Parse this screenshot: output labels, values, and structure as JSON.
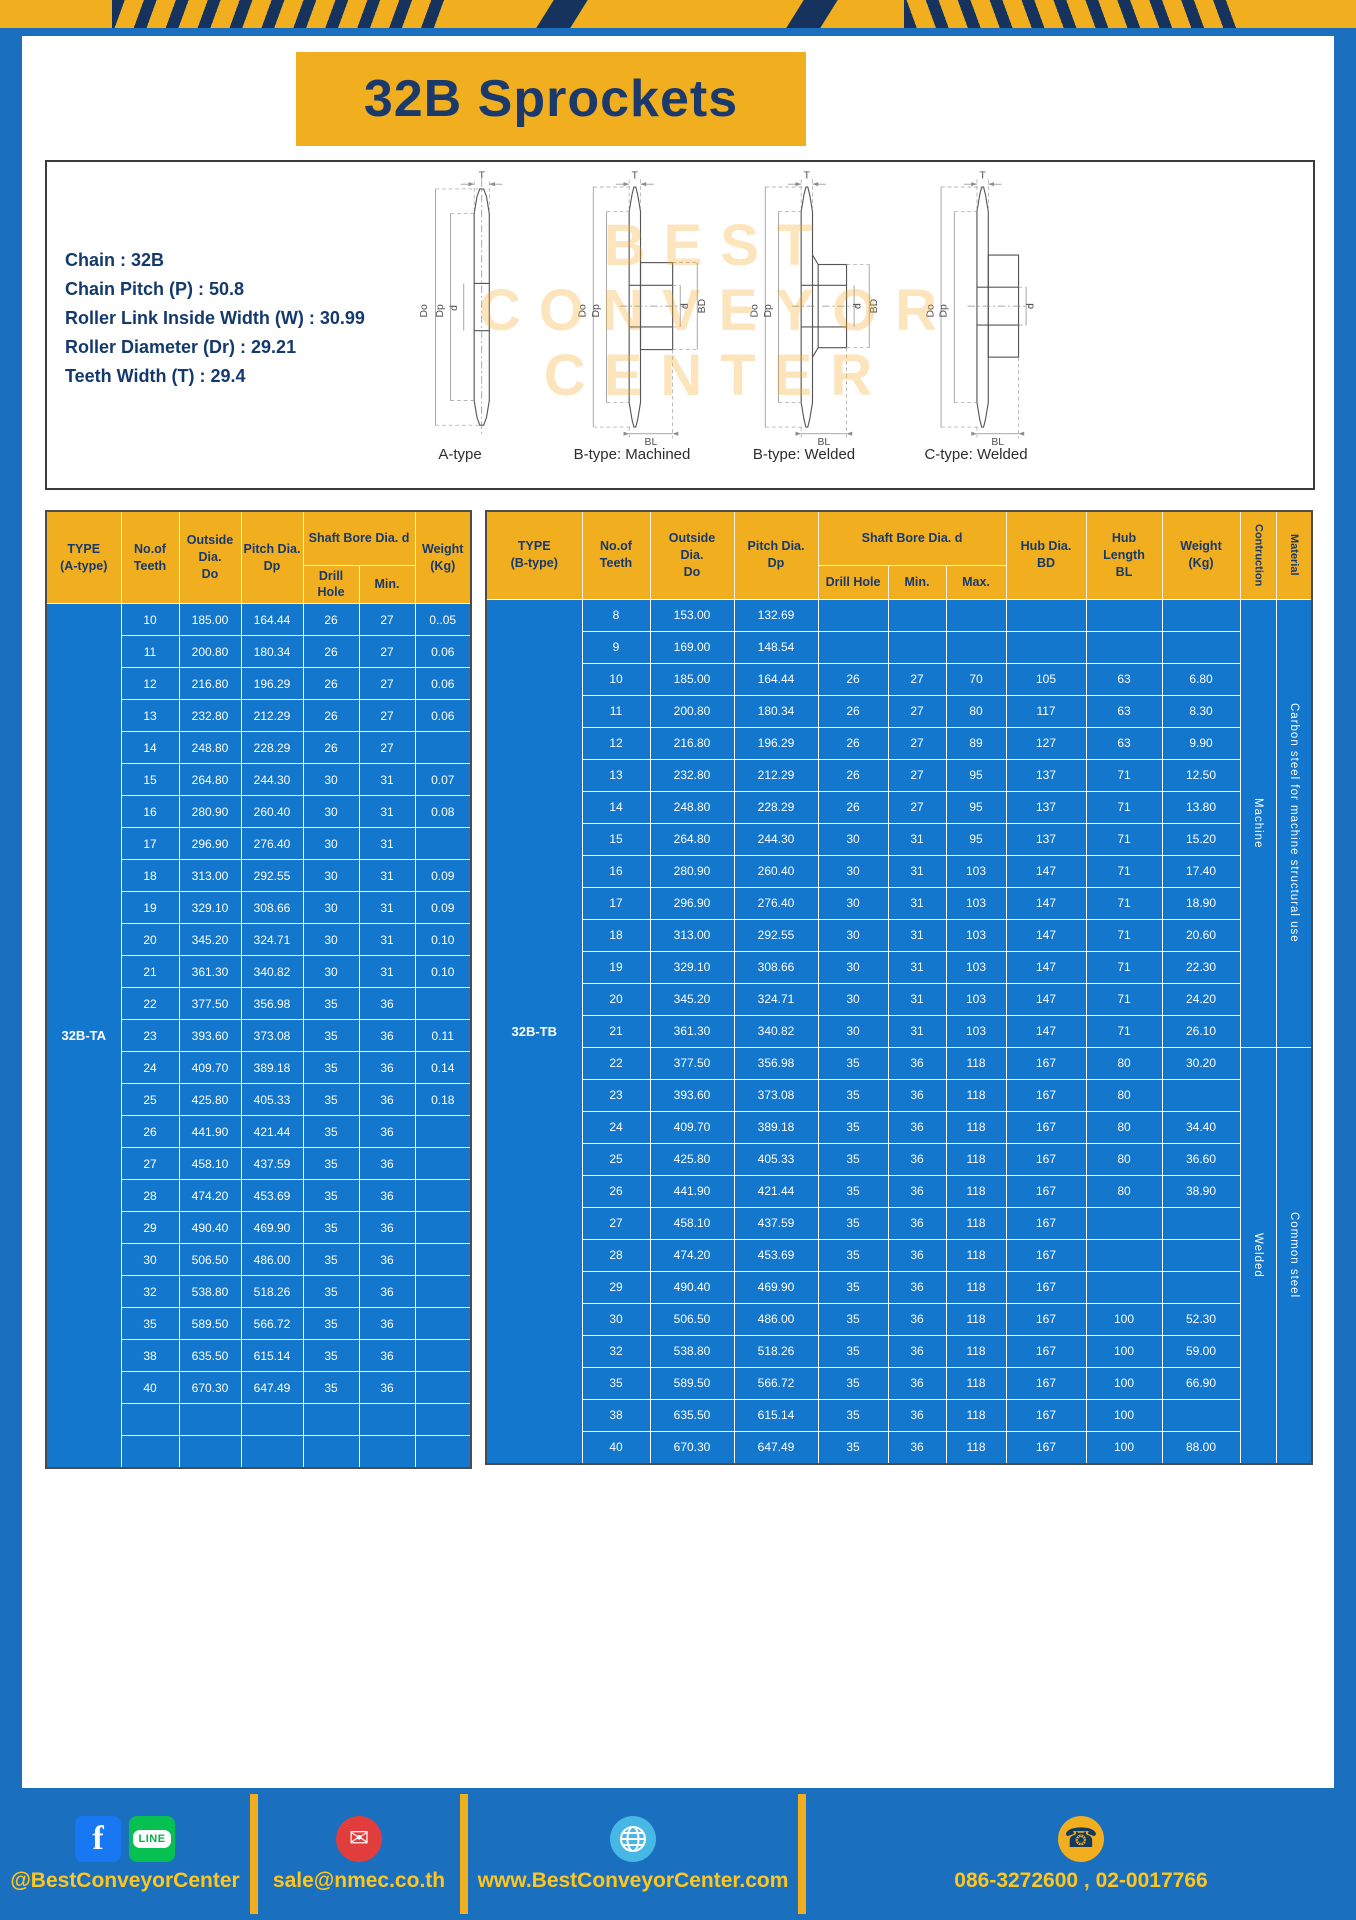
{
  "title": "32B Sprockets",
  "specs": {
    "lines": [
      "Chain : 32B",
      "Chain Pitch (P) : 50.8",
      "Roller Link Inside Width (W) : 30.99",
      "Roller Diameter (Dr) : 29.21",
      "Teeth Width (T) : 29.4"
    ],
    "watermark": [
      "BEST",
      "CONVEYOR",
      "CENTER"
    ],
    "diagram_labels": [
      "A-type",
      "B-type: Machined",
      "B-type: Welded",
      "C-type: Welded"
    ],
    "dims": {
      "T": "T",
      "Do": "Do",
      "Dp": "Dp",
      "d": "d",
      "BD": "BD",
      "BL": "BL"
    }
  },
  "table_a": {
    "headers": {
      "type": "TYPE\n(A-type)",
      "teeth": "No.of\nTeeth",
      "outside": "Outside\nDia.\nDo",
      "pitch": "Pitch Dia.\nDp",
      "shaft_group": "Shaft Bore Dia. d",
      "drill": "Drill Hole",
      "min": "Min.",
      "weight": "Weight\n(Kg)"
    },
    "type_label": "32B-TA",
    "rows": [
      [
        "10",
        "185.00",
        "164.44",
        "26",
        "27",
        "0..05"
      ],
      [
        "11",
        "200.80",
        "180.34",
        "26",
        "27",
        "0.06"
      ],
      [
        "12",
        "216.80",
        "196.29",
        "26",
        "27",
        "0.06"
      ],
      [
        "13",
        "232.80",
        "212.29",
        "26",
        "27",
        "0.06"
      ],
      [
        "14",
        "248.80",
        "228.29",
        "26",
        "27",
        ""
      ],
      [
        "15",
        "264.80",
        "244.30",
        "30",
        "31",
        "0.07"
      ],
      [
        "16",
        "280.90",
        "260.40",
        "30",
        "31",
        "0.08"
      ],
      [
        "17",
        "296.90",
        "276.40",
        "30",
        "31",
        ""
      ],
      [
        "18",
        "313.00",
        "292.55",
        "30",
        "31",
        "0.09"
      ],
      [
        "19",
        "329.10",
        "308.66",
        "30",
        "31",
        "0.09"
      ],
      [
        "20",
        "345.20",
        "324.71",
        "30",
        "31",
        "0.10"
      ],
      [
        "21",
        "361.30",
        "340.82",
        "30",
        "31",
        "0.10"
      ],
      [
        "22",
        "377.50",
        "356.98",
        "35",
        "36",
        ""
      ],
      [
        "23",
        "393.60",
        "373.08",
        "35",
        "36",
        "0.11"
      ],
      [
        "24",
        "409.70",
        "389.18",
        "35",
        "36",
        "0.14"
      ],
      [
        "25",
        "425.80",
        "405.33",
        "35",
        "36",
        "0.18"
      ],
      [
        "26",
        "441.90",
        "421.44",
        "35",
        "36",
        ""
      ],
      [
        "27",
        "458.10",
        "437.59",
        "35",
        "36",
        ""
      ],
      [
        "28",
        "474.20",
        "453.69",
        "35",
        "36",
        ""
      ],
      [
        "29",
        "490.40",
        "469.90",
        "35",
        "36",
        ""
      ],
      [
        "30",
        "506.50",
        "486.00",
        "35",
        "36",
        ""
      ],
      [
        "32",
        "538.80",
        "518.26",
        "35",
        "36",
        ""
      ],
      [
        "35",
        "589.50",
        "566.72",
        "35",
        "36",
        ""
      ],
      [
        "38",
        "635.50",
        "615.14",
        "35",
        "36",
        ""
      ],
      [
        "40",
        "670.30",
        "647.49",
        "35",
        "36",
        ""
      ],
      [
        "",
        "",
        "",
        "",
        "",
        ""
      ],
      [
        "",
        "",
        "",
        "",
        "",
        ""
      ]
    ]
  },
  "table_b": {
    "headers": {
      "type": "TYPE\n(B-type)",
      "teeth": "No.of\nTeeth",
      "outside": "Outside\nDia.\nDo",
      "pitch": "Pitch Dia.\nDp",
      "shaft_group": "Shaft Bore Dia. d",
      "drill": "Drill Hole",
      "min": "Min.",
      "max": "Max.",
      "hub_dia": "Hub Dia.\nBD",
      "hub_length": "Hub\nLength\nBL",
      "weight": "Weight\n(Kg)",
      "construction": "Contruction",
      "material": "Material"
    },
    "type_label": "32B-TB",
    "rows": [
      [
        "8",
        "153.00",
        "132.69",
        "",
        "",
        "",
        "",
        "",
        ""
      ],
      [
        "9",
        "169.00",
        "148.54",
        "",
        "",
        "",
        "",
        "",
        ""
      ],
      [
        "10",
        "185.00",
        "164.44",
        "26",
        "27",
        "70",
        "105",
        "63",
        "6.80"
      ],
      [
        "11",
        "200.80",
        "180.34",
        "26",
        "27",
        "80",
        "117",
        "63",
        "8.30"
      ],
      [
        "12",
        "216.80",
        "196.29",
        "26",
        "27",
        "89",
        "127",
        "63",
        "9.90"
      ],
      [
        "13",
        "232.80",
        "212.29",
        "26",
        "27",
        "95",
        "137",
        "71",
        "12.50"
      ],
      [
        "14",
        "248.80",
        "228.29",
        "26",
        "27",
        "95",
        "137",
        "71",
        "13.80"
      ],
      [
        "15",
        "264.80",
        "244.30",
        "30",
        "31",
        "95",
        "137",
        "71",
        "15.20"
      ],
      [
        "16",
        "280.90",
        "260.40",
        "30",
        "31",
        "103",
        "147",
        "71",
        "17.40"
      ],
      [
        "17",
        "296.90",
        "276.40",
        "30",
        "31",
        "103",
        "147",
        "71",
        "18.90"
      ],
      [
        "18",
        "313.00",
        "292.55",
        "30",
        "31",
        "103",
        "147",
        "71",
        "20.60"
      ],
      [
        "19",
        "329.10",
        "308.66",
        "30",
        "31",
        "103",
        "147",
        "71",
        "22.30"
      ],
      [
        "20",
        "345.20",
        "324.71",
        "30",
        "31",
        "103",
        "147",
        "71",
        "24.20"
      ],
      [
        "21",
        "361.30",
        "340.82",
        "30",
        "31",
        "103",
        "147",
        "71",
        "26.10"
      ],
      [
        "22",
        "377.50",
        "356.98",
        "35",
        "36",
        "118",
        "167",
        "80",
        "30.20"
      ],
      [
        "23",
        "393.60",
        "373.08",
        "35",
        "36",
        "118",
        "167",
        "80",
        ""
      ],
      [
        "24",
        "409.70",
        "389.18",
        "35",
        "36",
        "118",
        "167",
        "80",
        "34.40"
      ],
      [
        "25",
        "425.80",
        "405.33",
        "35",
        "36",
        "118",
        "167",
        "80",
        "36.60"
      ],
      [
        "26",
        "441.90",
        "421.44",
        "35",
        "36",
        "118",
        "167",
        "80",
        "38.90"
      ],
      [
        "27",
        "458.10",
        "437.59",
        "35",
        "36",
        "118",
        "167",
        "",
        ""
      ],
      [
        "28",
        "474.20",
        "453.69",
        "35",
        "36",
        "118",
        "167",
        "",
        ""
      ],
      [
        "29",
        "490.40",
        "469.90",
        "35",
        "36",
        "118",
        "167",
        "",
        ""
      ],
      [
        "30",
        "506.50",
        "486.00",
        "35",
        "36",
        "118",
        "167",
        "100",
        "52.30"
      ],
      [
        "32",
        "538.80",
        "518.26",
        "35",
        "36",
        "118",
        "167",
        "100",
        "59.00"
      ],
      [
        "35",
        "589.50",
        "566.72",
        "35",
        "36",
        "118",
        "167",
        "100",
        "66.90"
      ],
      [
        "38",
        "635.50",
        "615.14",
        "35",
        "36",
        "118",
        "167",
        "100",
        ""
      ],
      [
        "40",
        "670.30",
        "647.49",
        "35",
        "36",
        "118",
        "167",
        "100",
        "88.00"
      ]
    ],
    "construction_groups": [
      {
        "label": "Machine",
        "span": 14
      },
      {
        "label": "Welded",
        "span": 13
      }
    ],
    "material_groups": [
      {
        "label": "Carbon steel for machine structural use",
        "span": 14
      },
      {
        "label": "Common steel",
        "span": 13
      }
    ]
  },
  "footer": {
    "sections": [
      {
        "label": "@BestConveyorCenter"
      },
      {
        "label": "sale@nmec.co.th"
      },
      {
        "label": "www.BestConveyorCenter.com"
      },
      {
        "label": "086-3272600 , 02-0017766"
      }
    ],
    "glyphs": {
      "facebook": "f",
      "line": "LINE",
      "email": "✉",
      "phone": "☎"
    }
  },
  "colors": {
    "yellow": "#f1af20",
    "frame_blue": "#1a6fbe",
    "table_blue": "#1277cd",
    "navy": "#17396b",
    "footer_text": "#ffc61e"
  }
}
